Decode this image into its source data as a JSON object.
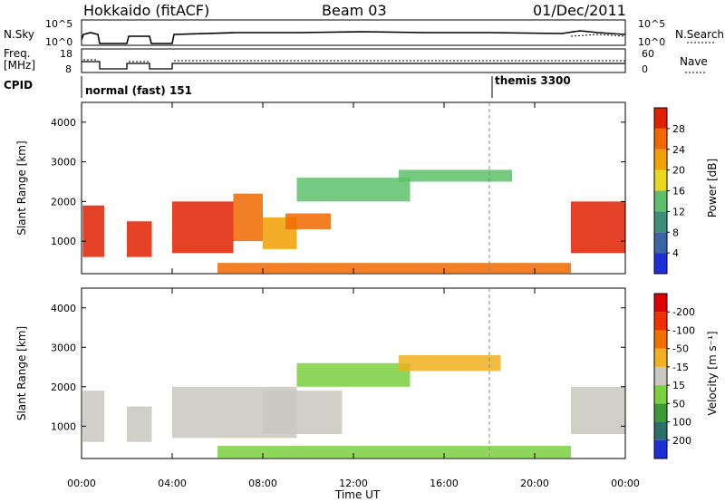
{
  "header": {
    "station": "Hokkaido (fitACF)",
    "beam": "Beam 03",
    "date": "01/Dec/2011"
  },
  "strip_panels": {
    "nsky": {
      "left_label": "N.Sky",
      "left_ticks": [
        "10^5",
        "10^0"
      ],
      "right_ticks": [
        "10^5",
        "10^0"
      ],
      "right_label": "N.Search"
    },
    "freq": {
      "left_label_1": "Freq.",
      "left_label_2": "[MHz]",
      "left_ticks": [
        "18",
        "8"
      ],
      "right_ticks": [
        "60",
        "0"
      ],
      "right_label": "Nave"
    },
    "cpid": {
      "label": "CPID",
      "modes": [
        "normal (fast) 151",
        "themis 3300"
      ]
    }
  },
  "chart_data": [
    {
      "type": "heatmap",
      "title": "",
      "xlabel": "Time UT",
      "ylabel": "Slant Range [km]",
      "x_ticks": [
        "00:00",
        "04:00",
        "08:00",
        "12:00",
        "16:00",
        "20:00",
        "00:00"
      ],
      "x_range_hours": [
        0,
        24
      ],
      "y_ticks": [
        1000,
        2000,
        3000,
        4000
      ],
      "ylim": [
        180,
        4500
      ],
      "colorbar": {
        "label": "Power [dB]",
        "ticks": [
          4,
          8,
          12,
          16,
          20,
          24,
          28
        ],
        "colors": [
          "#1e2fd8",
          "#3a66a8",
          "#3c8f78",
          "#5ec06a",
          "#e8d820",
          "#f0a000",
          "#f06800",
          "#e02000"
        ]
      },
      "regions": [
        {
          "t0": 0.05,
          "t1": 1.0,
          "r0": 600,
          "r1": 1900,
          "level": 28
        },
        {
          "t0": 2.0,
          "t1": 3.1,
          "r0": 600,
          "r1": 1500,
          "level": 28
        },
        {
          "t0": 4.0,
          "t1": 6.7,
          "r0": 700,
          "r1": 2000,
          "level": 28
        },
        {
          "t0": 6.7,
          "t1": 8.0,
          "r0": 1000,
          "r1": 2200,
          "level": 24
        },
        {
          "t0": 8.0,
          "t1": 9.5,
          "r0": 800,
          "r1": 1600,
          "level": 20
        },
        {
          "t0": 9.0,
          "t1": 11.0,
          "r0": 1300,
          "r1": 1700,
          "level": 24
        },
        {
          "t0": 9.5,
          "t1": 14.5,
          "r0": 2000,
          "r1": 2600,
          "level": 12
        },
        {
          "t0": 14.0,
          "t1": 19.0,
          "r0": 2500,
          "r1": 2800,
          "level": 12
        },
        {
          "t0": 21.6,
          "t1": 24.0,
          "r0": 700,
          "r1": 2000,
          "level": 28
        },
        {
          "t0": 6.0,
          "t1": 21.6,
          "r0": 200,
          "r1": 450,
          "level": 24
        }
      ]
    },
    {
      "type": "heatmap",
      "title": "",
      "xlabel": "Time UT",
      "ylabel": "Slant Range [km]",
      "x_ticks": [
        "00:00",
        "04:00",
        "08:00",
        "12:00",
        "16:00",
        "20:00",
        "00:00"
      ],
      "x_range_hours": [
        0,
        24
      ],
      "y_ticks": [
        1000,
        2000,
        3000,
        4000
      ],
      "ylim": [
        180,
        4500
      ],
      "colorbar": {
        "label": "Velocity [m s⁻¹]",
        "ticks": [
          200,
          100,
          50,
          15,
          -15,
          -50,
          -100,
          -200
        ],
        "colors": [
          "#1e2fd8",
          "#2e6e6a",
          "#3a9a3a",
          "#7ad040",
          "#c8c8c0",
          "#f0b020",
          "#f07000",
          "#f03000",
          "#e00000"
        ]
      },
      "regions": [
        {
          "t0": 0.05,
          "t1": 1.0,
          "r0": 600,
          "r1": 1900,
          "level": 0
        },
        {
          "t0": 2.0,
          "t1": 3.1,
          "r0": 600,
          "r1": 1500,
          "level": 0
        },
        {
          "t0": 4.0,
          "t1": 9.5,
          "r0": 700,
          "r1": 2000,
          "level": 0
        },
        {
          "t0": 8.0,
          "t1": 11.5,
          "r0": 800,
          "r1": 1900,
          "level": 0
        },
        {
          "t0": 9.5,
          "t1": 14.5,
          "r0": 2000,
          "r1": 2600,
          "level": 30
        },
        {
          "t0": 14.0,
          "t1": 18.5,
          "r0": 2400,
          "r1": 2800,
          "level": -30
        },
        {
          "t0": 21.6,
          "t1": 24.0,
          "r0": 800,
          "r1": 2000,
          "level": 0
        },
        {
          "t0": 6.0,
          "t1": 21.6,
          "r0": 200,
          "r1": 500,
          "level": 30
        }
      ]
    }
  ]
}
